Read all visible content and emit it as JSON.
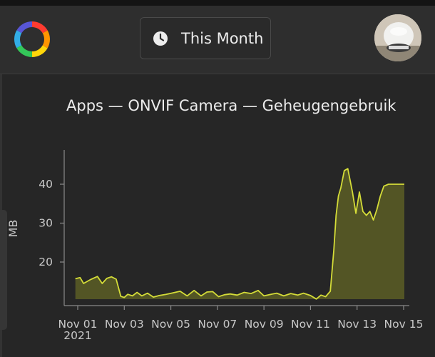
{
  "header": {
    "range_button_label": "This Month",
    "logo_icon": "hue-ring-logo",
    "clock_icon": "clock-icon",
    "avatar_icon": "camera-avatar"
  },
  "chart_data": {
    "type": "area",
    "title": "Apps — ONVIF Camera — Geheugengebruik",
    "ylabel": "MB",
    "xlabel": "",
    "ylim": [
      10,
      46
    ],
    "yticks": [
      20,
      30,
      40
    ],
    "xlim": [
      -0.1,
      14.03
    ],
    "xticks": [
      {
        "x": 0,
        "label": "Nov 01",
        "sublabel": "2021"
      },
      {
        "x": 2,
        "label": "Nov 03"
      },
      {
        "x": 4,
        "label": "Nov 05"
      },
      {
        "x": 6,
        "label": "Nov 07"
      },
      {
        "x": 8,
        "label": "Nov 09"
      },
      {
        "x": 10,
        "label": "Nov 11"
      },
      {
        "x": 12,
        "label": "Nov 13"
      },
      {
        "x": 14,
        "label": "Nov 15"
      }
    ],
    "grid": false,
    "colors": {
      "line": "#d4dc38",
      "fill": "#5c5e26"
    },
    "series": [
      {
        "x": [
          -0.1,
          0.1,
          0.25,
          0.55,
          0.85,
          1.05,
          1.25,
          1.45,
          1.65,
          1.85,
          2.0,
          2.15,
          2.35,
          2.55,
          2.75,
          3.0,
          3.25,
          3.5,
          3.8,
          4.1,
          4.4,
          4.7,
          5.0,
          5.3,
          5.55,
          5.8,
          6.05,
          6.3,
          6.55,
          6.85,
          7.15,
          7.45,
          7.75,
          8.0,
          8.3,
          8.55,
          8.85,
          9.15,
          9.45,
          9.7,
          10.0,
          10.25,
          10.45,
          10.65,
          10.85,
          11.0,
          11.1,
          11.2,
          11.3,
          11.45,
          11.6,
          11.8,
          11.95,
          12.1,
          12.25,
          12.4,
          12.55,
          12.7,
          12.85,
          13.0,
          13.15,
          13.35,
          13.55,
          13.75,
          13.9,
          14.03
        ],
        "values": [
          15.7,
          16.0,
          14.5,
          15.5,
          16.3,
          14.5,
          15.8,
          16.2,
          15.6,
          11.2,
          10.9,
          11.7,
          11.3,
          12.2,
          11.3,
          12.0,
          11.0,
          11.4,
          11.7,
          12.1,
          12.5,
          11.3,
          12.7,
          11.3,
          12.3,
          12.4,
          11.1,
          11.6,
          11.8,
          11.5,
          12.2,
          11.9,
          12.7,
          11.3,
          11.7,
          12.0,
          11.3,
          11.9,
          11.5,
          12.0,
          11.4,
          10.5,
          11.5,
          11.1,
          12.5,
          23.0,
          32.0,
          37.0,
          39.0,
          43.5,
          44.0,
          38.0,
          32.5,
          38.0,
          33.0,
          32.0,
          33.0,
          30.8,
          33.5,
          37.0,
          39.5,
          40.0,
          40.0,
          40.0,
          40.0,
          40.0
        ]
      }
    ]
  }
}
